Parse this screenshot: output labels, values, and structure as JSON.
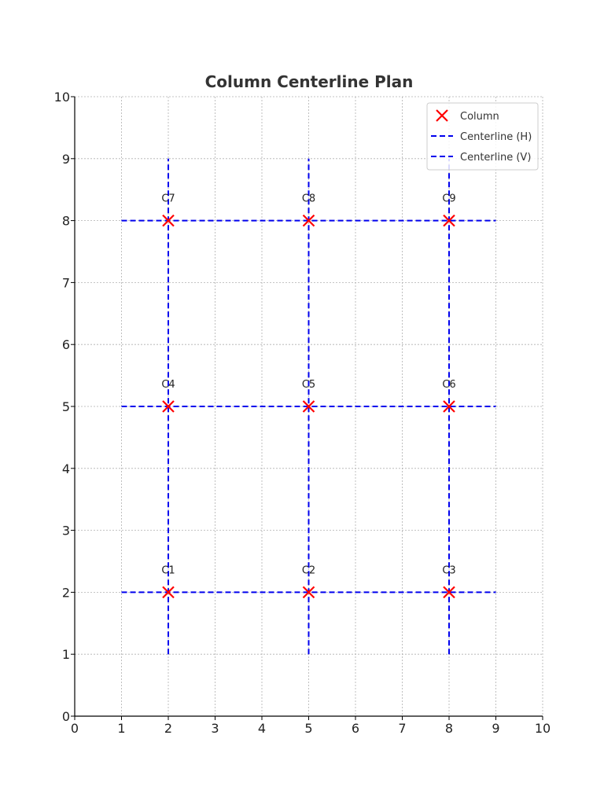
{
  "chart_data": {
    "type": "scatter",
    "title": "Column Centerline Plan",
    "xlabel": "",
    "ylabel": "",
    "xlim": [
      0,
      10
    ],
    "ylim": [
      0,
      10
    ],
    "xticks": [
      0,
      1,
      2,
      3,
      4,
      5,
      6,
      7,
      8,
      9,
      10
    ],
    "yticks": [
      0,
      1,
      2,
      3,
      4,
      5,
      6,
      7,
      8,
      9,
      10
    ],
    "grid": true,
    "legend_position": "top-right",
    "points": [
      {
        "label": "C1",
        "x": 2,
        "y": 2
      },
      {
        "label": "C2",
        "x": 5,
        "y": 2
      },
      {
        "label": "C3",
        "x": 8,
        "y": 2
      },
      {
        "label": "C4",
        "x": 2,
        "y": 5
      },
      {
        "label": "C5",
        "x": 5,
        "y": 5
      },
      {
        "label": "C6",
        "x": 8,
        "y": 5
      },
      {
        "label": "C7",
        "x": 2,
        "y": 8
      },
      {
        "label": "C8",
        "x": 5,
        "y": 8
      },
      {
        "label": "C9",
        "x": 8,
        "y": 8
      }
    ],
    "horizontal_centerlines": [
      {
        "y": 2,
        "x_from": 1,
        "x_to": 9
      },
      {
        "y": 5,
        "x_from": 1,
        "x_to": 9
      },
      {
        "y": 8,
        "x_from": 1,
        "x_to": 9
      }
    ],
    "vertical_centerlines": [
      {
        "x": 2,
        "y_from": 1,
        "y_to": 9
      },
      {
        "x": 5,
        "y_from": 1,
        "y_to": 9
      },
      {
        "x": 8,
        "y_from": 1,
        "y_to": 9
      }
    ],
    "legend": [
      {
        "key": "column",
        "label": "Column",
        "marker": "x",
        "color": "#ff0000"
      },
      {
        "key": "centerline_h",
        "label": "Centerline (H)",
        "marker": "dashed-line",
        "color": "#0000ee"
      },
      {
        "key": "centerline_v",
        "label": "Centerline (V)",
        "marker": "dashed-line",
        "color": "#0000ee"
      }
    ],
    "colors": {
      "column_marker": "#ff0000",
      "centerline": "#0000ee",
      "grid": "#b0b0b0",
      "axis": "#000000"
    }
  }
}
